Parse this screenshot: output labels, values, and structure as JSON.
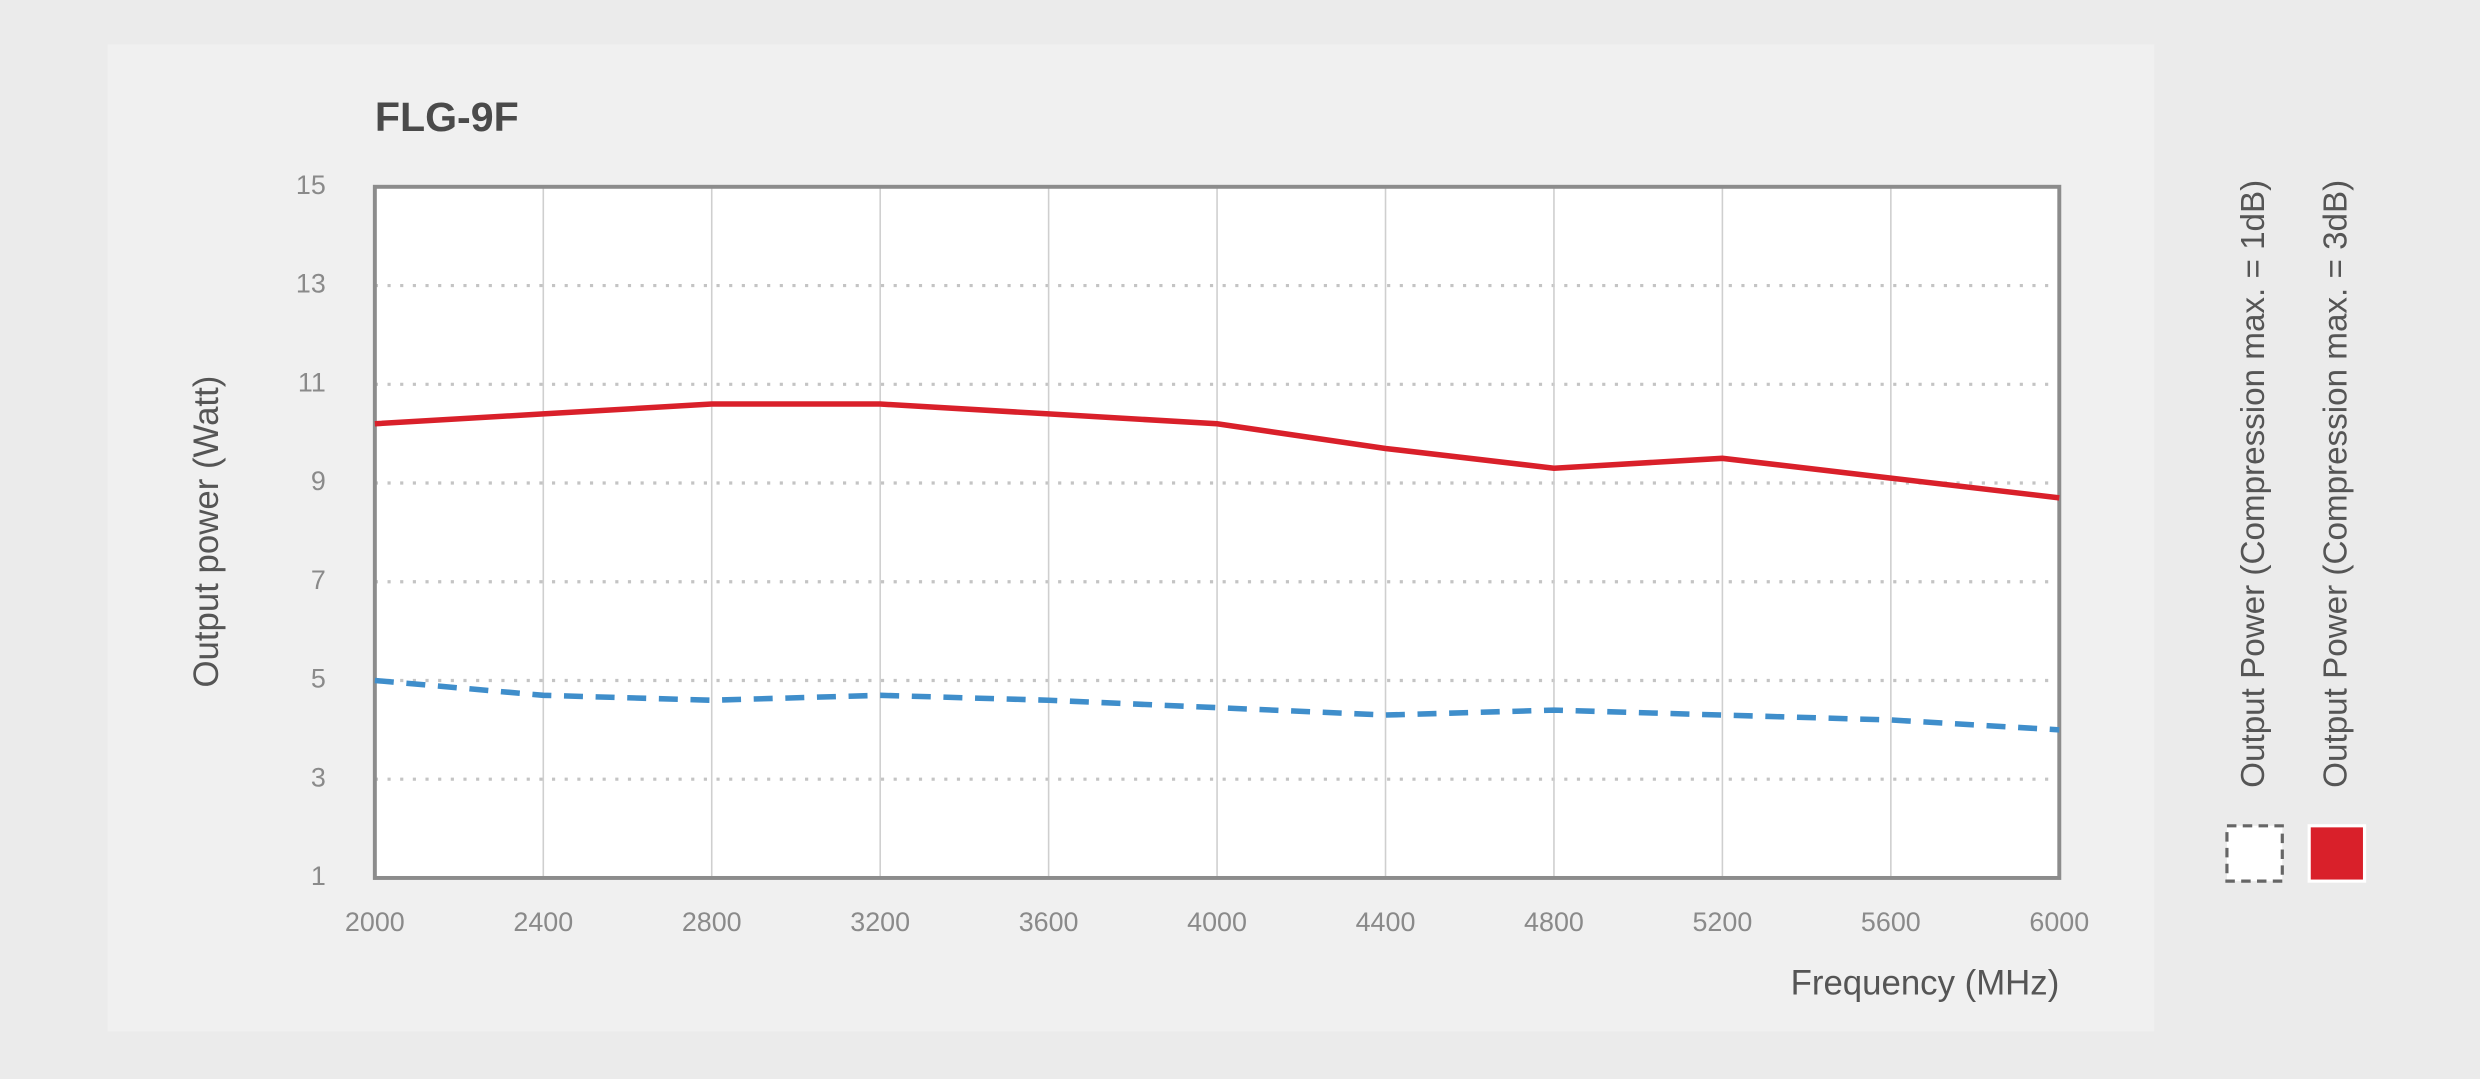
{
  "chart_data": {
    "type": "line",
    "title": "FLG-9F",
    "x_label": "Frequency (MHz)",
    "y_label": "Output power (Watt)",
    "x": [
      2000,
      2400,
      2800,
      3200,
      3600,
      4000,
      4400,
      4800,
      5200,
      5600,
      6000
    ],
    "series": [
      {
        "name": "Output Power (Compression max. = 1dB)",
        "color": "#3f8ecb",
        "dashed": true,
        "values": [
          5.0,
          4.7,
          4.6,
          4.7,
          4.6,
          4.45,
          4.3,
          4.4,
          4.3,
          4.2,
          4.0
        ]
      },
      {
        "name": "Output Power (Compression max. = 3dB)",
        "color": "#d9202a",
        "dashed": false,
        "values": [
          10.2,
          10.4,
          10.6,
          10.6,
          10.4,
          10.2,
          9.7,
          9.3,
          9.5,
          9.1,
          8.7
        ]
      }
    ],
    "xlim": [
      2000,
      6000
    ],
    "xticks": [
      2000,
      2400,
      2800,
      3200,
      3600,
      4000,
      4400,
      4800,
      5200,
      5600,
      6000
    ],
    "ylim": [
      1,
      15
    ],
    "yticks": [
      1,
      3,
      5,
      7,
      9,
      11,
      13,
      15
    ],
    "grid": true,
    "legend_position": "right"
  }
}
